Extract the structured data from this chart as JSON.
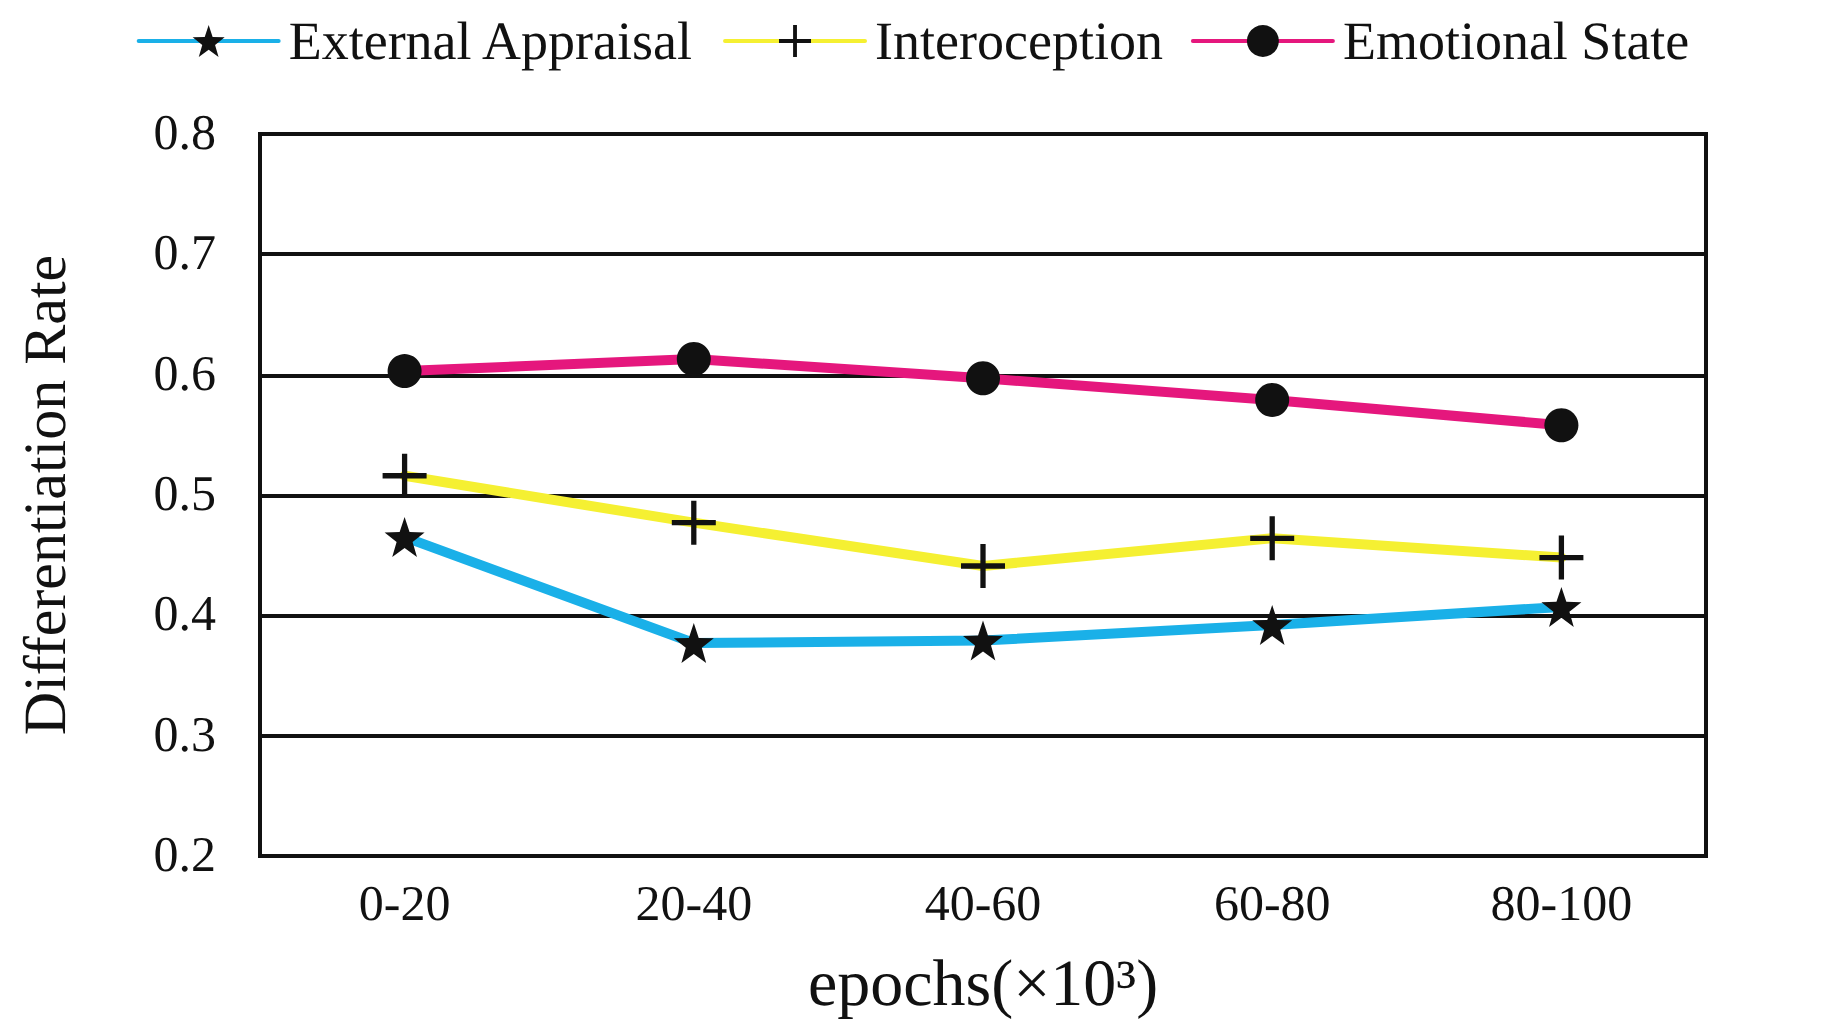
{
  "chart_data": {
    "type": "line",
    "xlabel": "epochs(×10³)",
    "ylabel": "Differentiation Rate",
    "categories": [
      "0-20",
      "20-40",
      "40-60",
      "60-80",
      "80-100"
    ],
    "series": [
      {
        "name": "External Appraisal",
        "color": "#1ab0e8",
        "marker": "star",
        "values": [
          0.465,
          0.377,
          0.379,
          0.392,
          0.407
        ]
      },
      {
        "name": "Interoception",
        "color": "#f5f032",
        "marker": "cross",
        "values": [
          0.516,
          0.477,
          0.441,
          0.464,
          0.448
        ]
      },
      {
        "name": "Emotional State",
        "color": "#e5177d",
        "marker": "circle",
        "values": [
          0.603,
          0.613,
          0.597,
          0.579,
          0.558
        ]
      }
    ],
    "ylim": [
      0.2,
      0.8
    ],
    "yticks": [
      0.2,
      0.3,
      0.4,
      0.5,
      0.6,
      0.7,
      0.8
    ],
    "grid": "y",
    "legend": "top",
    "line_style": "solid"
  }
}
